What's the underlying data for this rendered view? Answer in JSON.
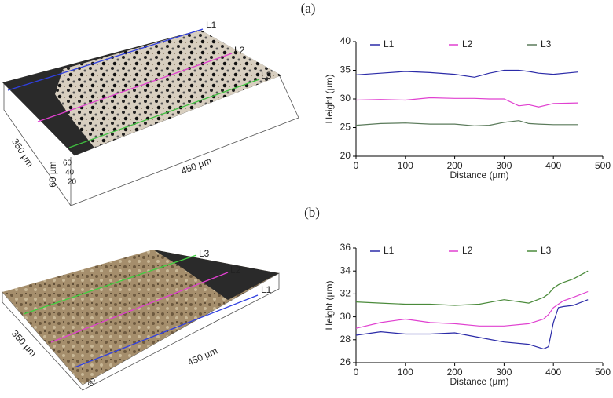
{
  "panel_labels": [
    "(a)",
    "(b)"
  ],
  "images": [
    {
      "lines": [
        "L1",
        "L2",
        "L3"
      ],
      "width_label": "350 µm",
      "length_label": "450 µm",
      "height_label": "60 µm",
      "z_ticks": [
        60,
        40,
        20
      ]
    },
    {
      "lines": [
        "L1",
        "L2",
        "L3"
      ],
      "width_label": "350 µm",
      "length_label": "450 µm",
      "z_ticks": [
        60
      ]
    }
  ],
  "chart_data": [
    {
      "type": "line",
      "xlabel": "Distance (µm)",
      "ylabel": "Height (µm)",
      "x": [
        0,
        50,
        100,
        150,
        200,
        240,
        270,
        300,
        330,
        350,
        370,
        400,
        450
      ],
      "series": [
        {
          "name": "L1",
          "color": "#2b2ba8",
          "values": [
            34.2,
            34.5,
            34.8,
            34.6,
            34.3,
            33.8,
            34.5,
            35.0,
            35.0,
            34.8,
            34.5,
            34.3,
            34.7
          ]
        },
        {
          "name": "L2",
          "color": "#e040d0",
          "values": [
            29.8,
            29.9,
            29.8,
            30.2,
            30.1,
            30.1,
            30.0,
            30.0,
            28.8,
            29.0,
            28.6,
            29.2,
            29.3
          ]
        },
        {
          "name": "L3",
          "color": "#5a7a5a",
          "values": [
            25.4,
            25.7,
            25.8,
            25.6,
            25.6,
            25.3,
            25.4,
            25.9,
            26.2,
            25.7,
            25.6,
            25.5,
            25.5
          ]
        }
      ],
      "xlim": [
        0,
        500
      ],
      "xticks": [
        0,
        100,
        200,
        300,
        400,
        500
      ],
      "ylim": [
        20,
        40
      ],
      "yticks": [
        20,
        25,
        30,
        35,
        40
      ]
    },
    {
      "type": "line",
      "xlabel": "Distance (µm)",
      "ylabel": "Height (µm)",
      "x": [
        0,
        50,
        100,
        150,
        200,
        250,
        300,
        350,
        380,
        390,
        400,
        410,
        420,
        440,
        470
      ],
      "series": [
        {
          "name": "L1",
          "color": "#2b2ba8",
          "values": [
            28.4,
            28.7,
            28.5,
            28.5,
            28.6,
            28.2,
            27.8,
            27.6,
            27.2,
            27.4,
            29.5,
            30.8,
            30.9,
            31.0,
            31.5
          ]
        },
        {
          "name": "L2",
          "color": "#e040d0",
          "values": [
            29.0,
            29.5,
            29.8,
            29.5,
            29.4,
            29.2,
            29.2,
            29.4,
            29.8,
            30.2,
            30.8,
            31.1,
            31.4,
            31.7,
            32.2
          ]
        },
        {
          "name": "L3",
          "color": "#4a8a3a",
          "values": [
            31.3,
            31.2,
            31.1,
            31.1,
            31.0,
            31.1,
            31.5,
            31.2,
            31.7,
            32.0,
            32.5,
            32.8,
            33.0,
            33.3,
            34.0
          ]
        }
      ],
      "xlim": [
        0,
        500
      ],
      "xticks": [
        0,
        100,
        200,
        300,
        400,
        500
      ],
      "ylim": [
        26,
        36
      ],
      "yticks": [
        26,
        28,
        30,
        32,
        34,
        36
      ]
    }
  ]
}
